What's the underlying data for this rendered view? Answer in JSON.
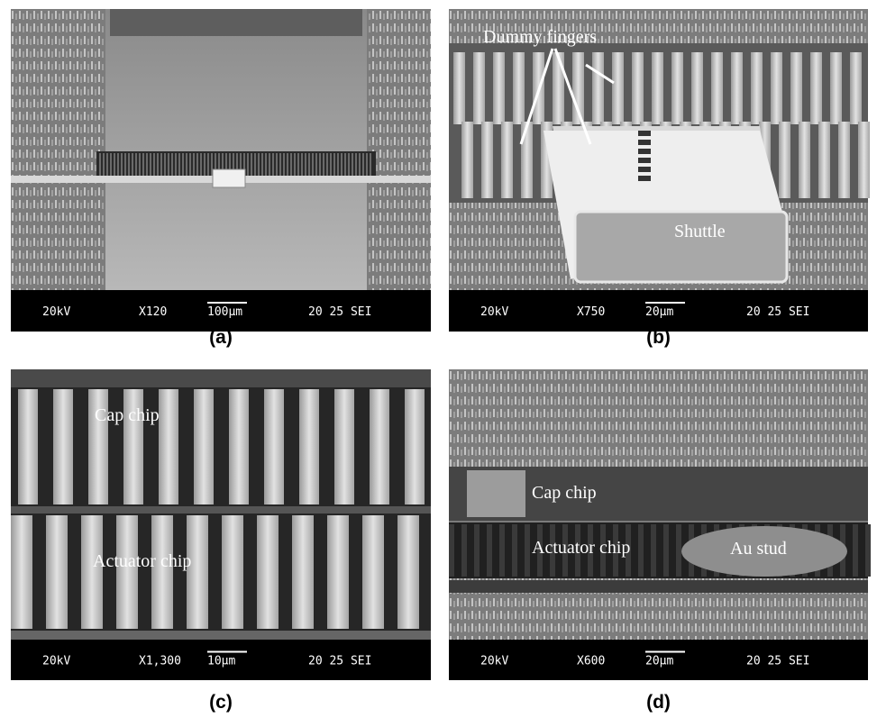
{
  "panels": [
    {
      "label": "(a)",
      "annotations": [],
      "info": {
        "voltage": "20kV",
        "magnification": "X120",
        "scale": "100µm",
        "code": "20 25 SEI"
      }
    },
    {
      "label": "(b)",
      "annotations": [
        "Dummy fingers",
        "Shuttle"
      ],
      "info": {
        "voltage": "20kV",
        "magnification": "X750",
        "scale": "20µm",
        "code": "20 25 SEI"
      }
    },
    {
      "label": "(c)",
      "annotations": [
        "Cap chip",
        "Actuator chip"
      ],
      "info": {
        "voltage": "20kV",
        "magnification": "X1,300",
        "scale": "10µm",
        "code": "20 25 SEI"
      }
    },
    {
      "label": "(d)",
      "annotations": [
        "Cap chip",
        "Actuator chip",
        "Au stud"
      ],
      "info": {
        "voltage": "20kV",
        "magnification": "X600",
        "scale": "20µm",
        "code": "20 25 SEI"
      }
    }
  ]
}
